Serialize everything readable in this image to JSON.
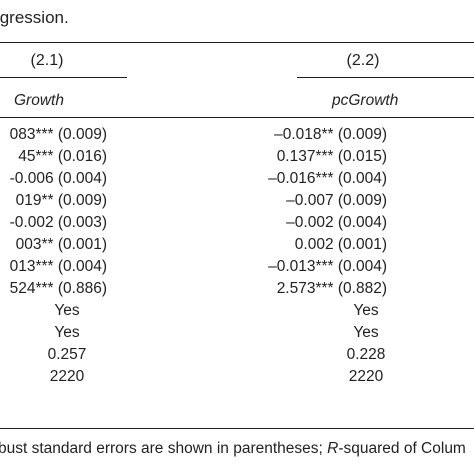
{
  "caption": "Regression.",
  "columns": [
    {
      "number": "(2.1)",
      "dependent": "Growth"
    },
    {
      "number": "(2.2)",
      "dependent": "pcGrowth"
    }
  ],
  "coef_rows": [
    {
      "c1": "083*** (0.009)",
      "c2": "–0.018** (0.009)"
    },
    {
      "c1": "45*** (0.016)",
      "c2": "0.137*** (0.015)"
    },
    {
      "c1": "-0.006 (0.004)",
      "c2": "–0.016*** (0.004)"
    },
    {
      "c1": "019** (0.009)",
      "c2": "–0.007 (0.009)"
    },
    {
      "c1": "-0.002 (0.003)",
      "c2": "–0.002 (0.004)"
    },
    {
      "c1": "003** (0.001)",
      "c2": "0.002 (0.001)"
    },
    {
      "c1": "013*** (0.004)",
      "c2": "–0.013*** (0.004)"
    },
    {
      "c1": "524*** (0.886)",
      "c2": "2.573*** (0.882)"
    }
  ],
  "stat_rows": [
    {
      "c1": "Yes",
      "c2": "Yes"
    },
    {
      "c1": "Yes",
      "c2": "Yes"
    },
    {
      "c1": "0.257",
      "c2": "0.228"
    },
    {
      "c1": "2220",
      "c2": "2220"
    }
  ],
  "note": {
    "prefix": "bust standard errors are shown in parentheses; ",
    "italic": "R",
    "suffix": "-squared of Colum"
  }
}
